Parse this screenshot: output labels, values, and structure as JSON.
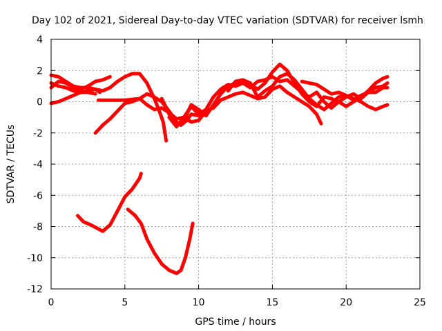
{
  "chart_data": {
    "type": "scatter",
    "title": "Day 102 of 2021, Sidereal Day-to-day VTEC variation (SDTVAR) for receiver lsmh",
    "xlabel": "GPS time / hours",
    "ylabel": "SDTVAR / TECUs",
    "xlim": [
      0,
      25
    ],
    "ylim": [
      -12,
      4
    ],
    "xticks": [
      0,
      5,
      10,
      15,
      20,
      25
    ],
    "yticks": [
      -12,
      -10,
      -8,
      -6,
      -4,
      -2,
      0,
      2,
      4
    ],
    "grid": true,
    "color": "#ff0000",
    "series": [
      {
        "name": "s1",
        "points": [
          [
            0,
            0.9
          ],
          [
            0.5,
            1.3
          ],
          [
            1,
            1.2
          ],
          [
            1.5,
            0.9
          ],
          [
            2,
            0.8
          ],
          [
            2.5,
            1.0
          ],
          [
            3,
            1.3
          ],
          [
            3.5,
            1.4
          ],
          [
            4,
            1.6
          ]
        ]
      },
      {
        "name": "s2",
        "points": [
          [
            0,
            1.7
          ],
          [
            0.5,
            1.6
          ],
          [
            1,
            1.3
          ],
          [
            1.5,
            1.0
          ],
          [
            2,
            0.9
          ],
          [
            2.5,
            0.9
          ],
          [
            3,
            0.8
          ],
          [
            3.3,
            0.6
          ]
        ]
      },
      {
        "name": "s3",
        "points": [
          [
            0,
            1.2
          ],
          [
            0.5,
            1.0
          ],
          [
            1,
            0.9
          ],
          [
            1.5,
            0.7
          ],
          [
            2,
            0.6
          ],
          [
            2.5,
            0.6
          ],
          [
            3,
            0.5
          ]
        ]
      },
      {
        "name": "s4",
        "points": [
          [
            0,
            -0.1
          ],
          [
            0.5,
            0.0
          ],
          [
            1,
            0.2
          ],
          [
            1.5,
            0.4
          ],
          [
            2,
            0.6
          ],
          [
            2.5,
            0.7
          ],
          [
            3,
            0.8
          ],
          [
            3.5,
            0.7
          ],
          [
            4,
            0.9
          ],
          [
            4.5,
            1.3
          ],
          [
            5,
            1.6
          ],
          [
            5.5,
            1.8
          ],
          [
            6,
            1.8
          ],
          [
            6.5,
            1.2
          ],
          [
            7,
            0.2
          ],
          [
            7.3,
            -0.5
          ],
          [
            7.6,
            -1.3
          ],
          [
            7.8,
            -2.5
          ]
        ]
      },
      {
        "name": "s5",
        "points": [
          [
            3,
            -2.0
          ],
          [
            3.5,
            -1.5
          ],
          [
            4,
            -1.1
          ],
          [
            4.5,
            -0.6
          ],
          [
            5,
            -0.1
          ],
          [
            5.5,
            0.0
          ],
          [
            6,
            0.2
          ],
          [
            6.5,
            0.5
          ],
          [
            7,
            0.3
          ],
          [
            7.5,
            0.0
          ],
          [
            8,
            -0.6
          ],
          [
            8.5,
            -1.3
          ],
          [
            8.8,
            -1.5
          ],
          [
            9.2,
            -1.2
          ],
          [
            9.5,
            -0.8
          ],
          [
            10,
            -0.9
          ],
          [
            10.5,
            -0.6
          ]
        ]
      },
      {
        "name": "s6",
        "points": [
          [
            3.2,
            0.1
          ],
          [
            4,
            0.1
          ],
          [
            5,
            0.1
          ],
          [
            6,
            0.2
          ],
          [
            6.5,
            -0.2
          ],
          [
            7,
            -0.5
          ],
          [
            7.5,
            -0.4
          ],
          [
            8,
            -0.7
          ],
          [
            8.5,
            -1.1
          ],
          [
            9,
            -1.0
          ],
          [
            9.5,
            -1.3
          ],
          [
            10,
            -1.2
          ],
          [
            10.5,
            -0.6
          ],
          [
            11,
            -0.4
          ],
          [
            11.5,
            0.1
          ],
          [
            12,
            0.3
          ],
          [
            12.5,
            0.5
          ],
          [
            13,
            0.6
          ],
          [
            13.5,
            0.4
          ],
          [
            14,
            0.2
          ],
          [
            14.5,
            0.3
          ],
          [
            15,
            0.8
          ],
          [
            15.5,
            1.0
          ],
          [
            16,
            0.6
          ],
          [
            16.5,
            0.3
          ],
          [
            17,
            0.0
          ],
          [
            17.5,
            -0.3
          ],
          [
            18,
            -0.8
          ],
          [
            18.3,
            -1.4
          ]
        ]
      },
      {
        "name": "s7",
        "points": [
          [
            7.5,
            0.2
          ],
          [
            8,
            -0.8
          ],
          [
            8.5,
            -1.5
          ],
          [
            9,
            -1.2
          ],
          [
            9.5,
            -0.2
          ],
          [
            10,
            -0.5
          ],
          [
            10.5,
            -0.9
          ],
          [
            11,
            -0.2
          ],
          [
            11.5,
            0.5
          ],
          [
            12,
            1.0
          ],
          [
            12.5,
            1.2
          ],
          [
            13,
            1.3
          ],
          [
            13.5,
            1.1
          ],
          [
            14,
            0.8
          ],
          [
            14.5,
            1.2
          ],
          [
            15,
            1.9
          ],
          [
            15.5,
            2.4
          ],
          [
            16,
            2.0
          ],
          [
            16.5,
            1.2
          ],
          [
            17,
            0.5
          ],
          [
            17.5,
            0.0
          ],
          [
            18,
            -0.3
          ],
          [
            18.5,
            0.3
          ],
          [
            19,
            0.2
          ],
          [
            19.5,
            0.0
          ],
          [
            20,
            -0.3
          ],
          [
            20.5,
            0.0
          ],
          [
            21,
            0.3
          ],
          [
            21.5,
            0.7
          ],
          [
            22,
            1.2
          ],
          [
            22.5,
            1.5
          ],
          [
            22.8,
            1.6
          ]
        ]
      },
      {
        "name": "s8",
        "points": [
          [
            8,
            -1.0
          ],
          [
            8.5,
            -1.6
          ],
          [
            9,
            -1.0
          ],
          [
            9.5,
            -0.3
          ],
          [
            10,
            -0.8
          ],
          [
            10.5,
            -0.5
          ],
          [
            11,
            0.3
          ],
          [
            11.5,
            0.8
          ],
          [
            12,
            1.1
          ],
          [
            12.5,
            1.0
          ],
          [
            13,
            1.2
          ],
          [
            13.5,
            0.9
          ],
          [
            14,
            1.3
          ],
          [
            14.5,
            1.4
          ],
          [
            15,
            1.6
          ],
          [
            15.5,
            1.3
          ],
          [
            16,
            1.4
          ],
          [
            16.5,
            1.0
          ],
          [
            17,
            0.6
          ],
          [
            17.5,
            0.3
          ],
          [
            18,
            0.6
          ],
          [
            18.5,
            0.0
          ],
          [
            19,
            -0.4
          ],
          [
            19.5,
            0.0
          ],
          [
            20,
            0.3
          ],
          [
            20.5,
            0.5
          ],
          [
            21,
            0.2
          ],
          [
            21.5,
            0.6
          ],
          [
            22,
            0.9
          ],
          [
            22.5,
            1.0
          ],
          [
            22.8,
            1.2
          ]
        ]
      },
      {
        "name": "s9",
        "points": [
          [
            12,
            0.7
          ],
          [
            12.5,
            1.3
          ],
          [
            13,
            1.4
          ],
          [
            13.5,
            1.2
          ],
          [
            14,
            0.3
          ],
          [
            14.5,
            0.7
          ],
          [
            15,
            1.0
          ],
          [
            15.5,
            1.6
          ],
          [
            16,
            1.8
          ],
          [
            16.5,
            1.4
          ],
          [
            17,
            0.8
          ],
          [
            17.5,
            0.2
          ],
          [
            18,
            -0.2
          ],
          [
            18.5,
            -0.5
          ],
          [
            19,
            -0.1
          ],
          [
            19.5,
            0.3
          ],
          [
            20,
            0.4
          ],
          [
            20.5,
            0.1
          ],
          [
            21,
            0.4
          ],
          [
            21.5,
            0.6
          ],
          [
            22,
            0.6
          ],
          [
            22.5,
            0.9
          ],
          [
            22.8,
            0.9
          ]
        ]
      },
      {
        "name": "s10",
        "points": [
          [
            17,
            1.3
          ],
          [
            17.5,
            1.2
          ],
          [
            18,
            1.1
          ],
          [
            18.5,
            0.8
          ],
          [
            19,
            0.5
          ],
          [
            19.5,
            0.6
          ],
          [
            20,
            0.4
          ],
          [
            20.5,
            0.2
          ],
          [
            21,
            0.0
          ],
          [
            21.5,
            -0.3
          ],
          [
            22,
            -0.5
          ],
          [
            22.5,
            -0.3
          ],
          [
            22.8,
            -0.2
          ]
        ]
      },
      {
        "name": "s11",
        "points": [
          [
            1.8,
            -7.3
          ],
          [
            2.2,
            -7.7
          ],
          [
            2.7,
            -7.9
          ],
          [
            3.1,
            -8.1
          ],
          [
            3.5,
            -8.3
          ],
          [
            4,
            -7.9
          ],
          [
            4.5,
            -7.0
          ],
          [
            5,
            -6.1
          ],
          [
            5.5,
            -5.6
          ],
          [
            6,
            -4.9
          ],
          [
            6.1,
            -4.6
          ]
        ]
      },
      {
        "name": "s12",
        "points": [
          [
            5.2,
            -6.9
          ],
          [
            5.7,
            -7.3
          ],
          [
            6.1,
            -7.8
          ],
          [
            6.5,
            -8.8
          ],
          [
            7,
            -9.7
          ],
          [
            7.5,
            -10.4
          ],
          [
            8,
            -10.8
          ],
          [
            8.5,
            -11.0
          ],
          [
            8.8,
            -10.8
          ],
          [
            9.1,
            -10.0
          ],
          [
            9.4,
            -8.8
          ],
          [
            9.6,
            -7.8
          ]
        ]
      }
    ]
  }
}
